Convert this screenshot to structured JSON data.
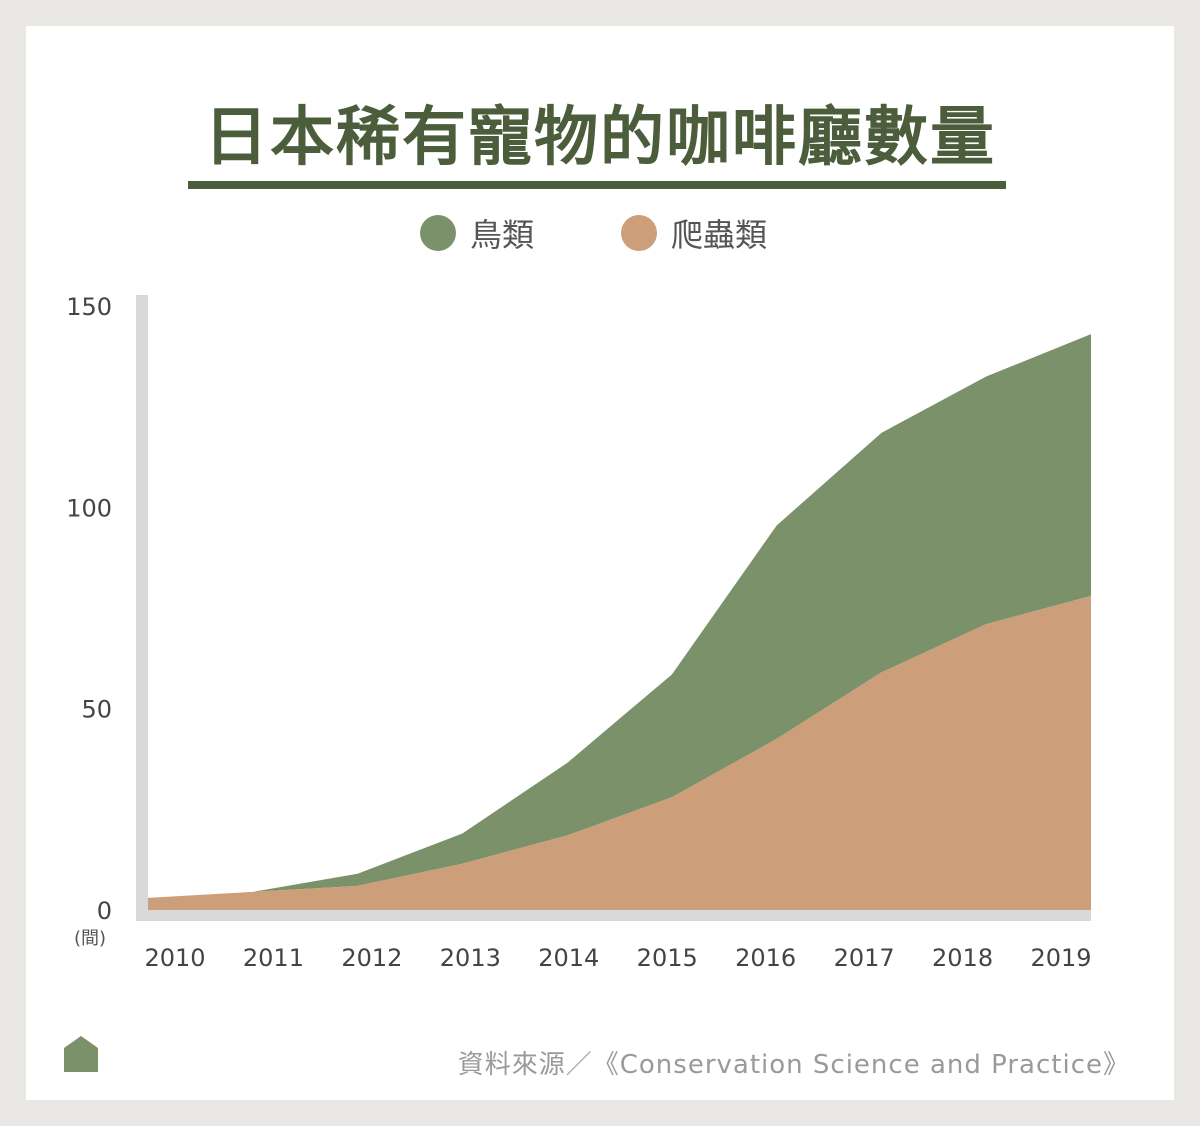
{
  "chart_data": {
    "type": "area",
    "title": "日本稀有寵物的咖啡廳數量",
    "ylabel": "(間)",
    "x": [
      "2010",
      "2011",
      "2012",
      "2013",
      "2014",
      "2015",
      "2016",
      "2017",
      "2018",
      "2019"
    ],
    "ylim": [
      0,
      150
    ],
    "yticks": [
      "0",
      "50",
      "100",
      "150"
    ],
    "stacked": true,
    "legend_position": "top-center",
    "series": [
      {
        "name": "爬蟲類",
        "color": "#cc9e79",
        "values": [
          3,
          4.5,
          6,
          11.5,
          18.5,
          28,
          42.5,
          59,
          71,
          78
        ]
      },
      {
        "name": "鳥類",
        "color": "#7a916a",
        "values": [
          0,
          0,
          3,
          7.5,
          18,
          30.5,
          53,
          59.5,
          61.5,
          65
        ]
      }
    ]
  },
  "source_text": "資料來源／《Conservation Science and Practice》",
  "colors": {
    "title": "#4c5d3c",
    "axis": "#d9d9d9",
    "background": "#e8e7e3"
  },
  "icon": "house-icon"
}
